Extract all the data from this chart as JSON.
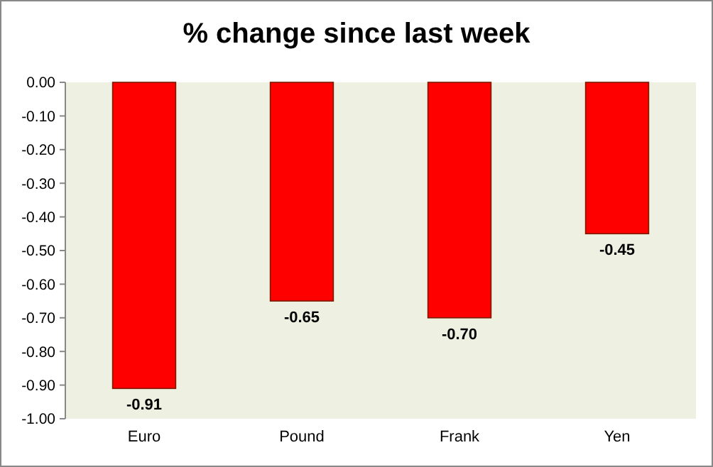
{
  "chart_data": {
    "type": "bar",
    "title": "% change since last week",
    "categories": [
      "Euro",
      "Pound",
      "Frank",
      "Yen"
    ],
    "values": [
      -0.91,
      -0.65,
      -0.7,
      -0.45
    ],
    "value_labels": [
      "-0.91",
      "-0.65",
      "-0.70",
      "-0.45"
    ],
    "color": "#ff0000",
    "ylim": [
      -1,
      0
    ],
    "yticks": [
      {
        "value": 0,
        "label": "0.00"
      },
      {
        "value": -0.1,
        "label": "-0.10"
      },
      {
        "value": -0.2,
        "label": "-0.20"
      },
      {
        "value": -0.3,
        "label": "-0.30"
      },
      {
        "value": -0.4,
        "label": "-0.40"
      },
      {
        "value": -0.5,
        "label": "-0.50"
      },
      {
        "value": -0.6,
        "label": "-0.60"
      },
      {
        "value": -0.7,
        "label": "-0.70"
      },
      {
        "value": -0.8,
        "label": "-0.80"
      },
      {
        "value": -0.9,
        "label": "-0.90"
      },
      {
        "value": -1,
        "label": "-1.00"
      }
    ],
    "grid": false
  }
}
